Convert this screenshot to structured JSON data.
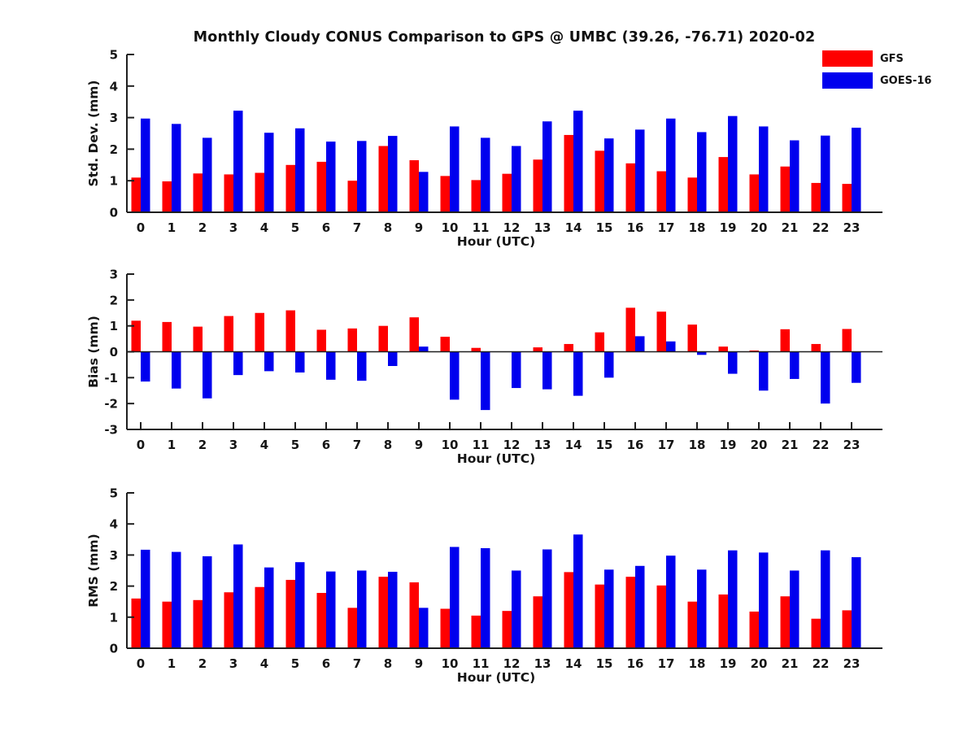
{
  "figure": {
    "title": "Monthly Cloudy CONUS Comparison to GPS @ UMBC (39.26, -76.71) 2020-02"
  },
  "legend": {
    "items": [
      {
        "label": "GFS",
        "color": "#fe0000"
      },
      {
        "label": "GOES-16",
        "color": "#0000ee"
      }
    ]
  },
  "chart_data": [
    {
      "type": "bar",
      "title": "Monthly Cloudy CONUS Comparison to GPS @ UMBC (39.26, -76.71) 2020-02",
      "ylabel": "Std. Dev. (mm)",
      "xlabel": "Hour (UTC)",
      "ylim": [
        0,
        5
      ],
      "yticks": [
        0,
        1,
        2,
        3,
        4,
        5
      ],
      "grid": false,
      "legend_position": "figure-top-right",
      "categories": [
        0,
        1,
        2,
        3,
        4,
        5,
        6,
        7,
        8,
        9,
        10,
        11,
        12,
        13,
        14,
        15,
        16,
        17,
        18,
        19,
        20,
        21,
        22,
        23
      ],
      "series": [
        {
          "name": "GFS",
          "color": "#fe0000",
          "values": [
            1.1,
            0.98,
            1.23,
            1.2,
            1.25,
            1.5,
            1.6,
            1.0,
            2.1,
            1.65,
            1.15,
            1.02,
            1.22,
            1.67,
            2.45,
            1.95,
            1.55,
            1.3,
            1.1,
            1.75,
            1.2,
            1.45,
            0.93,
            0.9
          ]
        },
        {
          "name": "GOES-16",
          "color": "#0000ee",
          "values": [
            2.97,
            2.8,
            2.36,
            3.22,
            2.52,
            2.66,
            2.24,
            2.26,
            2.42,
            1.28,
            2.72,
            2.36,
            2.1,
            2.88,
            3.22,
            2.34,
            2.62,
            2.97,
            2.54,
            3.05,
            2.72,
            2.28,
            2.43,
            2.68
          ]
        }
      ]
    },
    {
      "type": "bar",
      "title": "",
      "ylabel": "Bias (mm)",
      "xlabel": "Hour (UTC)",
      "ylim": [
        -3,
        3
      ],
      "yticks": [
        -3,
        -2,
        -1,
        0,
        1,
        2,
        3
      ],
      "grid": false,
      "legend_position": "none",
      "categories": [
        0,
        1,
        2,
        3,
        4,
        5,
        6,
        7,
        8,
        9,
        10,
        11,
        12,
        13,
        14,
        15,
        16,
        17,
        18,
        19,
        20,
        21,
        22,
        23
      ],
      "series": [
        {
          "name": "GFS",
          "color": "#fe0000",
          "values": [
            1.2,
            1.15,
            0.97,
            1.38,
            1.5,
            1.6,
            0.85,
            0.9,
            1.0,
            1.33,
            0.58,
            0.15,
            0.0,
            0.17,
            0.3,
            0.75,
            1.7,
            1.55,
            1.05,
            0.2,
            0.05,
            0.87,
            0.3,
            0.88
          ]
        },
        {
          "name": "GOES-16",
          "color": "#0000ee",
          "values": [
            -1.15,
            -1.42,
            -1.8,
            -0.9,
            -0.75,
            -0.8,
            -1.08,
            -1.12,
            -0.55,
            0.2,
            -1.85,
            -2.25,
            -1.4,
            -1.45,
            -1.7,
            -1.0,
            0.6,
            0.4,
            -0.12,
            -0.85,
            -1.5,
            -1.05,
            -2.0,
            -1.2
          ]
        }
      ]
    },
    {
      "type": "bar",
      "title": "",
      "ylabel": "RMS (mm)",
      "xlabel": "Hour (UTC)",
      "ylim": [
        0,
        5
      ],
      "yticks": [
        0,
        1,
        2,
        3,
        4,
        5
      ],
      "grid": false,
      "legend_position": "none",
      "categories": [
        0,
        1,
        2,
        3,
        4,
        5,
        6,
        7,
        8,
        9,
        10,
        11,
        12,
        13,
        14,
        15,
        16,
        17,
        18,
        19,
        20,
        21,
        22,
        23
      ],
      "series": [
        {
          "name": "GFS",
          "color": "#fe0000",
          "values": [
            1.6,
            1.5,
            1.55,
            1.8,
            1.97,
            2.2,
            1.78,
            1.3,
            2.3,
            2.12,
            1.27,
            1.05,
            1.2,
            1.67,
            2.45,
            2.05,
            2.3,
            2.02,
            1.5,
            1.73,
            1.18,
            1.67,
            0.95,
            1.22
          ]
        },
        {
          "name": "GOES-16",
          "color": "#0000ee",
          "values": [
            3.17,
            3.1,
            2.96,
            3.34,
            2.6,
            2.77,
            2.47,
            2.5,
            2.46,
            1.3,
            3.26,
            3.22,
            2.5,
            3.18,
            3.66,
            2.53,
            2.65,
            2.98,
            2.53,
            3.15,
            3.08,
            2.5,
            3.15,
            2.93
          ]
        }
      ]
    }
  ]
}
